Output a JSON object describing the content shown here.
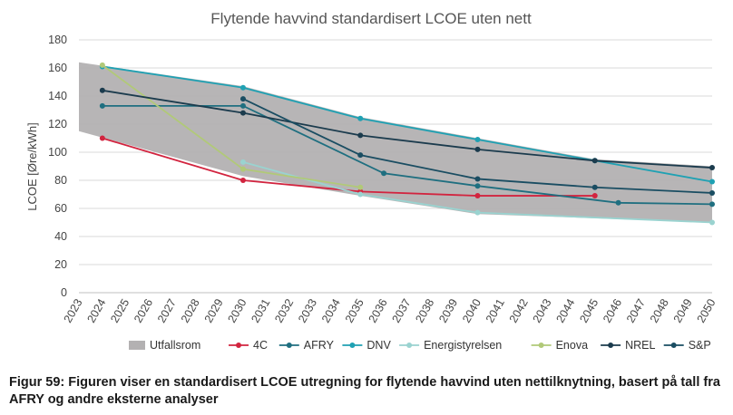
{
  "caption": "Figur 59: Figuren viser en standardisert LCOE utregning for flytende havvind uten nettilknytning, basert på tall fra AFRY og andre eksterne analyser",
  "chart_data": {
    "type": "line",
    "title": "Flytende havvind standardisert LCOE uten nett",
    "ylabel": "LCOE [Øre/kWh]",
    "xlabel": "",
    "ylim": [
      0,
      180
    ],
    "yticks": [
      "0",
      "20",
      "40",
      "60",
      "80",
      "100",
      "120",
      "140",
      "160",
      "180"
    ],
    "xlim": [
      2023,
      2050
    ],
    "xticks": [
      "2023",
      "2024",
      "2025",
      "2026",
      "2027",
      "2028",
      "2029",
      "2030",
      "2031",
      "2032",
      "2033",
      "2034",
      "2035",
      "2036",
      "2037",
      "2038",
      "2039",
      "2040",
      "2041",
      "2042",
      "2043",
      "2044",
      "2045",
      "2046",
      "2047",
      "2048",
      "2049",
      "2050"
    ],
    "grid": "horizontal",
    "legend_position": "bottom",
    "range_band": {
      "name": "Utfallsrom",
      "color": "#b3b1b2",
      "upper": [
        [
          2023,
          164
        ],
        [
          2030,
          147
        ],
        [
          2035,
          125
        ],
        [
          2040,
          110
        ],
        [
          2045,
          95
        ],
        [
          2050,
          90
        ]
      ],
      "lower": [
        [
          2023,
          115
        ],
        [
          2030,
          83
        ],
        [
          2035,
          69
        ],
        [
          2040,
          56
        ],
        [
          2045,
          53
        ],
        [
          2050,
          50
        ]
      ]
    },
    "series": [
      {
        "name": "4C",
        "color": "#d2243f",
        "points": [
          [
            2024,
            110
          ],
          [
            2030,
            80
          ],
          [
            2035,
            72
          ],
          [
            2040,
            69
          ],
          [
            2045,
            69
          ]
        ]
      },
      {
        "name": "AFRY",
        "color": "#1f6f80",
        "points": [
          [
            2024,
            133
          ],
          [
            2030,
            133
          ],
          [
            2036,
            85
          ],
          [
            2040,
            76
          ],
          [
            2046,
            64
          ],
          [
            2050,
            63
          ]
        ]
      },
      {
        "name": "DNV",
        "color": "#1fa1b3",
        "points": [
          [
            2024,
            161
          ],
          [
            2030,
            146
          ],
          [
            2035,
            124
          ],
          [
            2040,
            109
          ],
          [
            2045,
            94
          ],
          [
            2050,
            79
          ]
        ]
      },
      {
        "name": "Energistyrelsen",
        "color": "#9ad3d0",
        "points": [
          [
            2030,
            93
          ],
          [
            2035,
            70
          ],
          [
            2040,
            57
          ],
          [
            2050,
            50
          ]
        ]
      },
      {
        "name": "Enova",
        "color": "#b1c978",
        "points": [
          [
            2024,
            162
          ],
          [
            2030,
            88
          ],
          [
            2035,
            75
          ]
        ]
      },
      {
        "name": "NREL",
        "color": "#1b3b4d",
        "points": [
          [
            2024,
            144
          ],
          [
            2030,
            128
          ],
          [
            2035,
            112
          ],
          [
            2040,
            102
          ],
          [
            2045,
            94
          ],
          [
            2050,
            89
          ]
        ]
      },
      {
        "name": "S&P",
        "color": "#1a4d62",
        "points": [
          [
            2030,
            138
          ],
          [
            2035,
            98
          ],
          [
            2040,
            81
          ],
          [
            2045,
            75
          ],
          [
            2050,
            71
          ]
        ]
      }
    ]
  }
}
